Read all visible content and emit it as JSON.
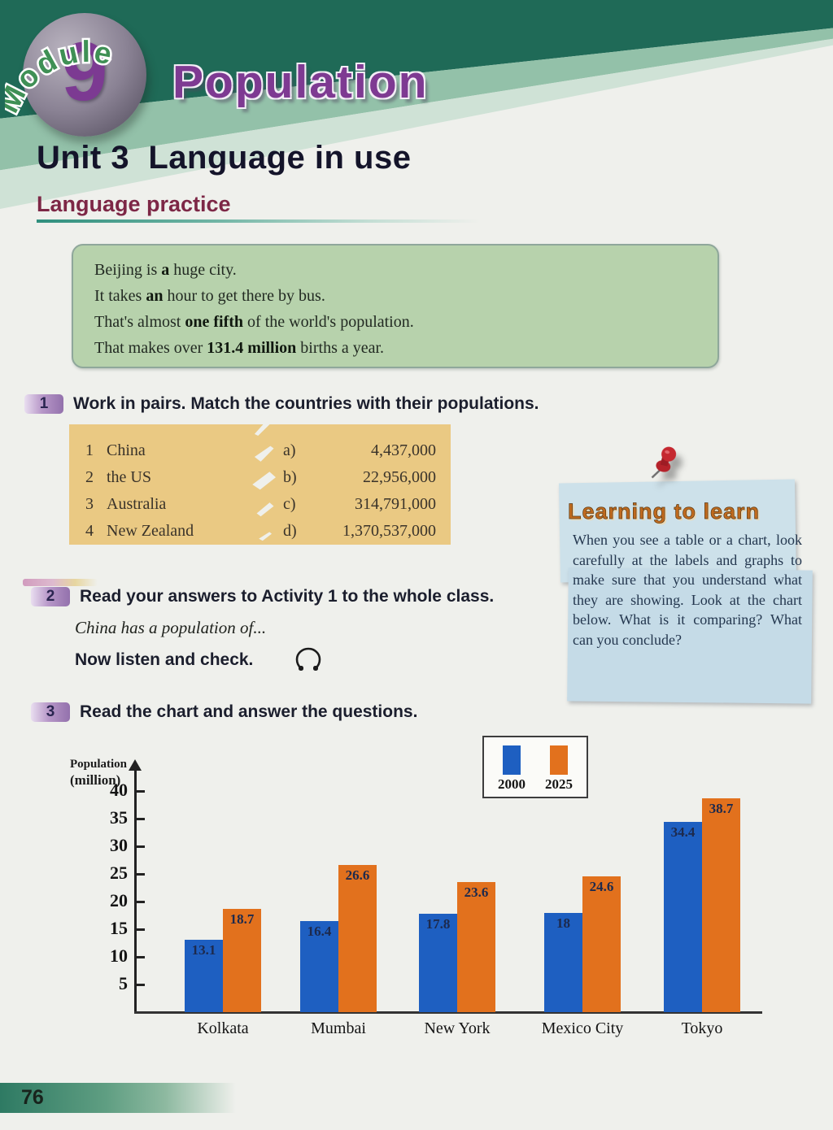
{
  "page": {
    "number": "76"
  },
  "header": {
    "module_label": "Module",
    "module_number": "9",
    "title": "Population"
  },
  "unit": {
    "title": "Unit 3  Language in use",
    "section": "Language practice"
  },
  "example_box": {
    "lines": [
      {
        "pre": "Beijing is ",
        "bold": "a",
        "post": " huge city."
      },
      {
        "pre": "It takes ",
        "bold": "an",
        "post": " hour to get there by bus."
      },
      {
        "pre": "That's almost ",
        "bold": "one fifth",
        "post": " of the world's population."
      },
      {
        "pre": "That makes over ",
        "bold": "131.4 million",
        "post": " births a year."
      }
    ]
  },
  "activities": [
    {
      "number": "1",
      "title": "Work in pairs. Match the countries with their populations."
    },
    {
      "number": "2",
      "title": "Read your answers to Activity 1 to the whole class.",
      "example_sentence": "China has a population of...",
      "listen_line": "Now listen and check."
    },
    {
      "number": "3",
      "title": "Read the chart and answer the questions."
    }
  ],
  "match_table": {
    "countries": [
      {
        "num": "1",
        "name": "China"
      },
      {
        "num": "2",
        "name": "the US"
      },
      {
        "num": "3",
        "name": "Australia"
      },
      {
        "num": "4",
        "name": "New Zealand"
      }
    ],
    "options": [
      {
        "letter": "a)",
        "value": "4,437,000"
      },
      {
        "letter": "b)",
        "value": "22,956,000"
      },
      {
        "letter": "c)",
        "value": "314,791,000"
      },
      {
        "letter": "d)",
        "value": "1,370,537,000"
      }
    ]
  },
  "learning_note": {
    "title": "Learning to learn",
    "body": "When you see a table or a chart, look carefully at the labels and graphs to make sure that you understand what they are showing. Look at the chart below. What is it comparing? What can you conclude?"
  },
  "chart_data": {
    "type": "bar",
    "title": "",
    "xlabel": "",
    "ylabel": "Population (million)",
    "ylabel_lines": [
      "Population",
      "(million)"
    ],
    "categories": [
      "Kolkata",
      "Mumbai",
      "New York",
      "Mexico City",
      "Tokyo"
    ],
    "series": [
      {
        "name": "2000",
        "color": "#1e5fc1",
        "values": [
          13.1,
          16.4,
          17.8,
          18,
          34.4
        ]
      },
      {
        "name": "2025",
        "color": "#e2711d",
        "values": [
          18.7,
          26.6,
          23.6,
          24.6,
          38.7
        ]
      }
    ],
    "ylim": [
      0,
      40
    ],
    "ytick_step": 5,
    "grid": false,
    "legend_position": "top-right"
  },
  "palette": {
    "header_green": "#1f6a57",
    "title_purple": "#7e3a92",
    "section_red": "#7d2746",
    "example_box_green": "#b7d2ac",
    "table_tan": "#eac983",
    "note_blue": "#c9dfe9",
    "badge_purple": "#a27fb5",
    "bar_2000": "#1e5fc1",
    "bar_2025": "#e2711d"
  }
}
